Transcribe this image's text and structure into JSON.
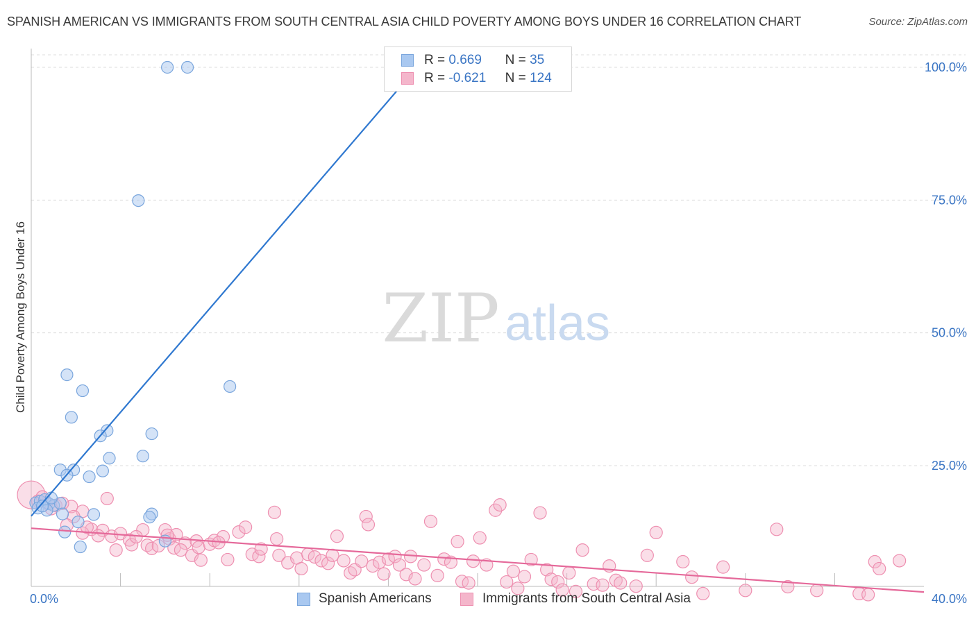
{
  "title": "SPANISH AMERICAN VS IMMIGRANTS FROM SOUTH CENTRAL ASIA CHILD POVERTY AMONG BOYS UNDER 16 CORRELATION CHART",
  "source": "Source: ZipAtlas.com",
  "watermark": {
    "zip": "ZIP",
    "atlas": "atlas"
  },
  "colors": {
    "blue_fill": "#a9c8f0",
    "blue_stroke": "#7aa6dd",
    "blue_line": "#2f78d0",
    "pink_fill": "#f4b6cb",
    "pink_stroke": "#ee8fb0",
    "pink_line": "#e5699a",
    "tick_label": "#3a75c4",
    "grid": "#dcdcdc"
  },
  "legend": {
    "rows": [
      {
        "r_label": "R =",
        "r_value": " 0.669",
        "n_label": "N =",
        "n_value": " 35"
      },
      {
        "r_label": "R =",
        "r_value": "-0.621",
        "n_label": "N =",
        "n_value": "124"
      }
    ]
  },
  "bottom_legend": {
    "series1": "Spanish Americans",
    "series2": "Immigrants from South Central Asia"
  },
  "chart_data": {
    "type": "scatter",
    "title": "SPANISH AMERICAN VS IMMIGRANTS FROM SOUTH CENTRAL ASIA CHILD POVERTY AMONG BOYS UNDER 16 CORRELATION CHART",
    "xlabel": "",
    "ylabel": "Child Poverty Among Boys Under 16",
    "xlim": [
      0,
      40
    ],
    "ylim": [
      0,
      102
    ],
    "x_tick_labels": [
      "0.0%",
      "40.0%"
    ],
    "y_ticks": [
      25,
      50,
      75,
      100
    ],
    "y_tick_labels": [
      "25.0%",
      "50.0%",
      "75.0%",
      "100.0%"
    ],
    "grid": true,
    "legend_position": "top-center",
    "series": [
      {
        "name": "Spanish Americans",
        "r": 0.669,
        "n": 35,
        "trend": {
          "x": [
            0,
            17.7
          ],
          "y": [
            15.5,
            102
          ]
        },
        "points": [
          [
            6.1,
            100
          ],
          [
            7.0,
            100
          ],
          [
            4.8,
            74.9
          ],
          [
            1.6,
            42.1
          ],
          [
            2.3,
            39.1
          ],
          [
            8.9,
            39.9
          ],
          [
            1.8,
            34.1
          ],
          [
            3.4,
            31.6
          ],
          [
            3.1,
            30.6
          ],
          [
            5.4,
            31.0
          ],
          [
            3.5,
            26.4
          ],
          [
            5.0,
            26.8
          ],
          [
            1.3,
            24.2
          ],
          [
            1.9,
            24.2
          ],
          [
            3.2,
            24.0
          ],
          [
            1.6,
            23.2
          ],
          [
            2.6,
            22.9
          ],
          [
            0.2,
            18.0
          ],
          [
            0.4,
            18.3
          ],
          [
            0.6,
            18.6
          ],
          [
            0.8,
            17.8
          ],
          [
            1.0,
            17.5
          ],
          [
            1.3,
            17.9
          ],
          [
            0.3,
            17.0
          ],
          [
            0.7,
            16.6
          ],
          [
            2.8,
            15.8
          ],
          [
            1.4,
            15.9
          ],
          [
            5.4,
            15.9
          ],
          [
            5.3,
            15.3
          ],
          [
            2.1,
            14.4
          ],
          [
            1.5,
            12.5
          ],
          [
            6.0,
            10.8
          ],
          [
            2.2,
            9.7
          ],
          [
            0.9,
            18.9
          ],
          [
            0.5,
            17.4
          ]
        ]
      },
      {
        "name": "Immigrants from South Central Asia",
        "r": -0.621,
        "n": 124,
        "trend": {
          "x": [
            0,
            40
          ],
          "y": [
            13.2,
            1.2
          ]
        },
        "points": [
          [
            0.0,
            19.5
          ],
          [
            0.3,
            18.3
          ],
          [
            0.7,
            18.0
          ],
          [
            1.1,
            17.5
          ],
          [
            1.8,
            17.3
          ],
          [
            2.3,
            16.4
          ],
          [
            1.9,
            15.4
          ],
          [
            3.4,
            18.8
          ],
          [
            0.9,
            16.9
          ],
          [
            1.6,
            13.8
          ],
          [
            2.7,
            13.0
          ],
          [
            2.3,
            12.3
          ],
          [
            3.2,
            12.8
          ],
          [
            3.6,
            11.7
          ],
          [
            4.0,
            12.2
          ],
          [
            4.4,
            11.0
          ],
          [
            3.8,
            9.1
          ],
          [
            4.5,
            10.1
          ],
          [
            5.0,
            12.9
          ],
          [
            5.2,
            10.0
          ],
          [
            5.4,
            9.4
          ],
          [
            5.7,
            9.9
          ],
          [
            6.0,
            12.9
          ],
          [
            6.2,
            11.2
          ],
          [
            6.5,
            12.0
          ],
          [
            6.9,
            10.4
          ],
          [
            6.4,
            9.5
          ],
          [
            6.7,
            9.1
          ],
          [
            7.4,
            10.8
          ],
          [
            7.2,
            8.1
          ],
          [
            7.6,
            7.2
          ],
          [
            7.5,
            9.6
          ],
          [
            8.0,
            10.2
          ],
          [
            8.2,
            10.9
          ],
          [
            8.6,
            11.6
          ],
          [
            8.4,
            10.5
          ],
          [
            8.8,
            7.3
          ],
          [
            9.3,
            12.5
          ],
          [
            9.6,
            13.4
          ],
          [
            9.9,
            8.3
          ],
          [
            10.2,
            7.9
          ],
          [
            10.3,
            9.3
          ],
          [
            10.9,
            16.2
          ],
          [
            11.0,
            11.2
          ],
          [
            11.1,
            8.1
          ],
          [
            11.5,
            6.7
          ],
          [
            11.9,
            7.6
          ],
          [
            12.1,
            5.6
          ],
          [
            12.4,
            8.3
          ],
          [
            12.7,
            7.8
          ],
          [
            13.0,
            7.1
          ],
          [
            13.3,
            6.6
          ],
          [
            13.5,
            8.1
          ],
          [
            13.7,
            11.7
          ],
          [
            14.0,
            7.1
          ],
          [
            14.3,
            4.8
          ],
          [
            14.5,
            5.4
          ],
          [
            14.8,
            7.0
          ],
          [
            15.0,
            15.4
          ],
          [
            15.1,
            13.9
          ],
          [
            15.3,
            6.1
          ],
          [
            15.6,
            6.8
          ],
          [
            15.8,
            4.6
          ],
          [
            16.0,
            7.4
          ],
          [
            16.3,
            7.9
          ],
          [
            16.5,
            6.3
          ],
          [
            16.8,
            4.5
          ],
          [
            17.0,
            7.9
          ],
          [
            17.2,
            3.7
          ],
          [
            17.6,
            6.3
          ],
          [
            17.9,
            14.5
          ],
          [
            18.2,
            4.3
          ],
          [
            18.5,
            7.4
          ],
          [
            18.8,
            6.8
          ],
          [
            19.1,
            10.7
          ],
          [
            19.3,
            3.2
          ],
          [
            19.6,
            2.9
          ],
          [
            19.8,
            7.0
          ],
          [
            20.1,
            11.4
          ],
          [
            20.4,
            6.3
          ],
          [
            20.8,
            16.6
          ],
          [
            21.0,
            17.6
          ],
          [
            21.3,
            3.1
          ],
          [
            21.6,
            5.1
          ],
          [
            21.8,
            1.9
          ],
          [
            22.1,
            4.1
          ],
          [
            22.4,
            7.3
          ],
          [
            22.8,
            16.1
          ],
          [
            23.1,
            5.4
          ],
          [
            23.3,
            3.6
          ],
          [
            23.6,
            3.1
          ],
          [
            23.8,
            1.6
          ],
          [
            24.1,
            4.8
          ],
          [
            24.4,
            1.3
          ],
          [
            24.7,
            9.1
          ],
          [
            25.2,
            2.7
          ],
          [
            25.6,
            2.5
          ],
          [
            25.9,
            6.1
          ],
          [
            26.2,
            3.4
          ],
          [
            26.4,
            2.9
          ],
          [
            27.1,
            2.3
          ],
          [
            27.6,
            8.1
          ],
          [
            28.0,
            12.4
          ],
          [
            29.2,
            6.9
          ],
          [
            29.6,
            4.0
          ],
          [
            30.1,
            0.9
          ],
          [
            31.0,
            5.9
          ],
          [
            32.0,
            1.5
          ],
          [
            33.4,
            13.0
          ],
          [
            33.9,
            2.2
          ],
          [
            35.2,
            1.5
          ],
          [
            37.1,
            0.9
          ],
          [
            37.5,
            0.7
          ],
          [
            37.8,
            6.9
          ],
          [
            38.0,
            5.6
          ],
          [
            38.9,
            7.1
          ],
          [
            0.5,
            19.1
          ],
          [
            1.4,
            17.9
          ],
          [
            2.5,
            13.4
          ],
          [
            3.0,
            11.8
          ],
          [
            4.7,
            11.6
          ],
          [
            6.1,
            11.9
          ]
        ]
      }
    ]
  }
}
